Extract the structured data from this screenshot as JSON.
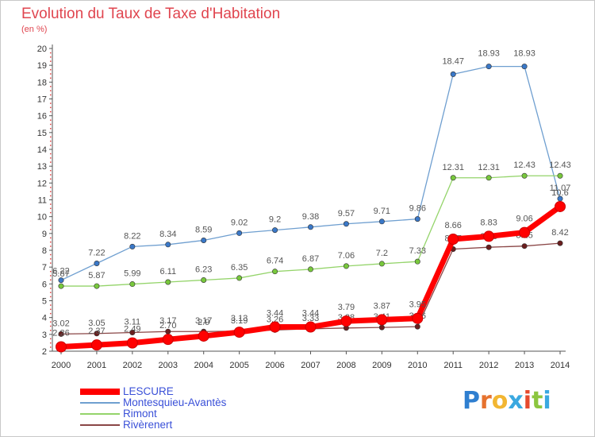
{
  "title": "Evolution du Taux de Taxe d'Habitation",
  "subtitle": "(en %)",
  "logo": {
    "letters": [
      "P",
      "r",
      "o",
      "x",
      "i",
      "t",
      "i"
    ],
    "colors": [
      "#2f7fd0",
      "#e6722e",
      "#f2b632",
      "#3aa8e0",
      "#e64a2e",
      "#8cc63f",
      "#3aa8e0"
    ]
  },
  "chart_data": {
    "type": "line",
    "x": [
      2000,
      2001,
      2002,
      2003,
      2004,
      2005,
      2006,
      2007,
      2008,
      2009,
      2010,
      2011,
      2012,
      2013,
      2014
    ],
    "ylim": [
      2,
      20
    ],
    "yticks": [
      2,
      3,
      4,
      5,
      6,
      7,
      8,
      9,
      10,
      11,
      12,
      13,
      14,
      15,
      16,
      17,
      18,
      19,
      20
    ],
    "grid": false,
    "legend_placement": "bottom-left",
    "series": [
      {
        "name": "Montesquieu-Avantès",
        "color": "#6f9fd0",
        "marker": "#3a78c8",
        "values": [
          6.22,
          7.22,
          8.22,
          8.34,
          8.59,
          9.02,
          9.2,
          9.38,
          9.57,
          9.71,
          9.86,
          18.47,
          18.93,
          18.93,
          11.07
        ],
        "labels": [
          "6.22",
          "7.22",
          "8.22",
          "8.34",
          "8.59",
          "9.02",
          "9.2",
          "9.38",
          "9.57",
          "9.71",
          "9.86",
          "18.47",
          "18.93",
          "18.93",
          "11.07"
        ]
      },
      {
        "name": "Rimont",
        "color": "#94d46a",
        "marker": "#78c83c",
        "values": [
          5.87,
          5.87,
          5.99,
          6.11,
          6.23,
          6.35,
          6.74,
          6.87,
          7.06,
          7.2,
          7.33,
          12.31,
          12.31,
          12.43,
          12.43
        ],
        "labels": [
          "5.87",
          "5.87",
          "5.99",
          "6.11",
          "6.23",
          "6.35",
          "6.74",
          "6.87",
          "7.06",
          "7.2",
          "7.33",
          "12.31",
          "12.31",
          "12.43",
          "12.43"
        ]
      },
      {
        "name": "Rivèrenert",
        "color": "#8a4646",
        "marker": "#6a1e1e",
        "values": [
          3.02,
          3.05,
          3.11,
          3.17,
          3.17,
          3.19,
          3.26,
          3.33,
          3.38,
          3.41,
          3.46,
          8.07,
          8.18,
          8.25,
          8.42
        ],
        "labels": [
          "3.02",
          "3.05",
          "3.11",
          "3.17",
          "3.17",
          "3.19",
          "3.26",
          "3.33",
          "3.38",
          "3.41",
          "3.46",
          "8.07",
          "8.18",
          "8.25",
          "8.42"
        ]
      },
      {
        "name": "LESCURE",
        "color": "#ff0000",
        "marker": "#ff0000",
        "values": [
          2.26,
          2.37,
          2.49,
          2.7,
          2.9,
          3.13,
          3.44,
          3.44,
          3.79,
          3.87,
          3.95,
          8.66,
          8.83,
          9.06,
          10.6
        ],
        "labels": [
          "2.26",
          "2.37",
          "2.49",
          "2.70",
          "2.9",
          "3.13",
          "3.44",
          "3.44",
          "3.79",
          "3.87",
          "3.95",
          "8.66",
          "8.83",
          "9.06",
          "10.6"
        ]
      }
    ]
  }
}
